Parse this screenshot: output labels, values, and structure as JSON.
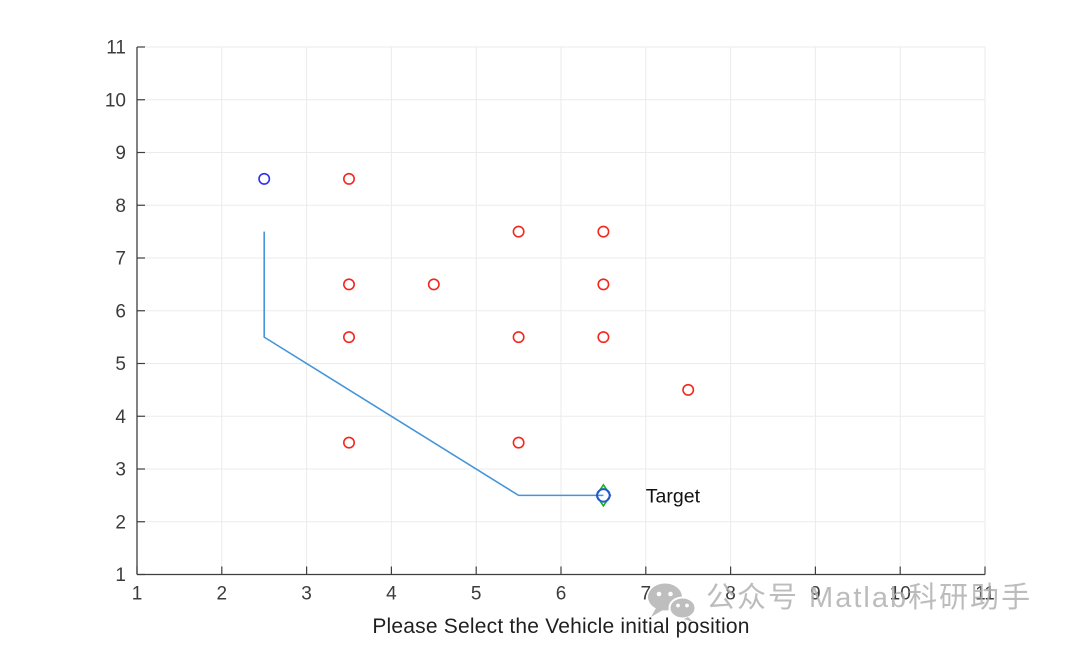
{
  "figure": {
    "watermark": {
      "text": "公众号 Matlab科研助手"
    }
  },
  "chart_data": {
    "type": "scatter",
    "title": "",
    "xlabel": "Please Select the Vehicle initial position",
    "ylabel": "",
    "xlim": [
      1,
      11
    ],
    "ylim": [
      1,
      11
    ],
    "xticks": [
      1,
      2,
      3,
      4,
      5,
      6,
      7,
      8,
      9,
      10,
      11
    ],
    "yticks": [
      1,
      2,
      3,
      4,
      5,
      6,
      7,
      8,
      9,
      10,
      11
    ],
    "grid": true,
    "legend": null,
    "style": {
      "background": "#ffffff",
      "grid_color": "#ebebeb",
      "axis_color": "#3f3f3f",
      "tick_label_color": "#3c3c3c",
      "annotation_color": "#111111"
    },
    "series": [
      {
        "name": "obstacle-markers",
        "marker": "circle",
        "color": "#f3271d",
        "points": [
          [
            3.5,
            8.5
          ],
          [
            5.5,
            7.5
          ],
          [
            6.5,
            7.5
          ],
          [
            3.5,
            6.5
          ],
          [
            4.5,
            6.5
          ],
          [
            6.5,
            6.5
          ],
          [
            3.5,
            5.5
          ],
          [
            5.5,
            5.5
          ],
          [
            6.5,
            5.5
          ],
          [
            7.5,
            4.5
          ],
          [
            3.5,
            3.5
          ],
          [
            5.5,
            3.5
          ]
        ]
      },
      {
        "name": "start-marker",
        "marker": "circle",
        "color": "#2f2ff2",
        "points": [
          [
            2.5,
            8.5
          ]
        ]
      },
      {
        "name": "path-line",
        "marker": "line",
        "color": "#4595da",
        "points": [
          [
            2.5,
            7.5
          ],
          [
            2.5,
            5.5
          ],
          [
            5.5,
            2.5
          ],
          [
            6.5,
            2.5
          ]
        ]
      },
      {
        "name": "target-diamond-marker",
        "marker": "diamond",
        "color": "#1db41d",
        "points": [
          [
            6.5,
            2.5
          ]
        ]
      },
      {
        "name": "target-circle-marker",
        "marker": "circle-bold",
        "color": "#2457d5",
        "points": [
          [
            6.5,
            2.5
          ]
        ]
      }
    ],
    "annotations": [
      {
        "text": "Target",
        "x": 7.0,
        "y": 2.5
      }
    ]
  }
}
